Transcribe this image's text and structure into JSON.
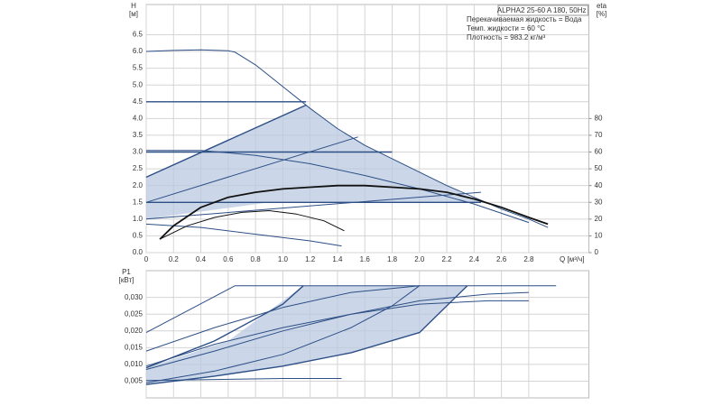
{
  "chart_data": [
    {
      "type": "line",
      "y_label": "H",
      "y_unit": "[м]",
      "y2_label": "eta",
      "y2_unit": "[%]",
      "x_label": "Q [м³/ч]",
      "annotation_title": "ALPHA2 25-60 A 180, 50Hz",
      "annotations": [
        "Перекачиваемая жидкость = Вода",
        "Темп. жидкости = 60 °C",
        "Плотность = 983.2 кг/м³"
      ],
      "xlim": [
        0,
        3.24
      ],
      "xticks": [
        0,
        0.2,
        0.4,
        0.6,
        0.8,
        {
          "value": 1,
          "label": "1.0"
        },
        1.2,
        1.4,
        1.6,
        1.8,
        {
          "value": 2,
          "label": "2.0"
        },
        2.2,
        2.4,
        2.6,
        2.8
      ],
      "ylim": [
        0,
        7.4
      ],
      "yticks": [
        {
          "value": 0,
          "label": "0.0"
        },
        0.5,
        {
          "value": 1,
          "label": "1.0"
        },
        1.5,
        {
          "value": 2,
          "label": "2.0"
        },
        2.5,
        {
          "value": 3,
          "label": "3.0"
        },
        3.5,
        {
          "value": 4,
          "label": "4.0"
        },
        4.5,
        {
          "value": 5,
          "label": "5.0"
        },
        5.5,
        {
          "value": 6,
          "label": "6.0"
        },
        6.5
      ],
      "y2lim": [
        0,
        148
      ],
      "y2ticks": [
        0,
        10,
        20,
        30,
        40,
        50,
        60,
        70,
        80
      ],
      "grid": true,
      "series": [
        {
          "color": "#b9c9e0",
          "fill": true,
          "x": [
            0,
            0,
            1.17,
            1.4,
            1.6,
            1.8,
            2.0,
            2.2,
            2.45,
            0.9
          ],
          "values": [
            1.0,
            2.25,
            4.4,
            3.7,
            3.2,
            2.8,
            2.4,
            2.0,
            1.5,
            1.5
          ]
        },
        {
          "color": "#2d4f86",
          "width": 1,
          "x": [
            0,
            0.2,
            0.4,
            0.6,
            0.65,
            0.8,
            1.0,
            1.2,
            1.4,
            1.6,
            1.8,
            2.0,
            2.2,
            2.4,
            2.6,
            2.8,
            2.94
          ],
          "values": [
            6.0,
            6.03,
            6.05,
            6.02,
            5.98,
            5.6,
            4.95,
            4.3,
            3.7,
            3.2,
            2.8,
            2.4,
            2.0,
            1.65,
            1.3,
            1.0,
            0.75
          ]
        },
        {
          "color": "#2d4f86",
          "width": 1.4,
          "x": [
            0,
            1.17
          ],
          "values": [
            4.5,
            4.5
          ]
        },
        {
          "color": "#2d4f86",
          "width": 1.4,
          "x": [
            0,
            1.8
          ],
          "values": [
            3.0,
            3.0
          ]
        },
        {
          "color": "#2d4f86",
          "width": 1.4,
          "x": [
            0,
            2.45
          ],
          "values": [
            1.5,
            1.5
          ]
        },
        {
          "color": "#2d4f86",
          "width": 1.4,
          "x": [
            0,
            1.17
          ],
          "values": [
            2.25,
            4.4
          ]
        },
        {
          "color": "#2d4f86",
          "width": 1,
          "x": [
            0,
            1.55
          ],
          "values": [
            1.5,
            3.45
          ]
        },
        {
          "color": "#2d4f86",
          "width": 1,
          "x": [
            0,
            2.45
          ],
          "values": [
            1.0,
            1.8
          ]
        },
        {
          "color": "#2d4f86",
          "width": 1,
          "x": [
            0,
            0.4,
            0.8,
            1.2,
            1.6,
            2.0,
            2.4,
            2.8
          ],
          "values": [
            3.05,
            3.05,
            2.9,
            2.65,
            2.3,
            1.9,
            1.45,
            0.9
          ]
        },
        {
          "color": "#2d4f86",
          "width": 1,
          "x": [
            0,
            0.4,
            0.8,
            1.2,
            1.43
          ],
          "values": [
            0.85,
            0.75,
            0.55,
            0.35,
            0.2
          ]
        },
        {
          "color": "#111111",
          "width": 1.8,
          "axis": "y2",
          "x": [
            0.1,
            0.2,
            0.4,
            0.6,
            0.8,
            1.0,
            1.2,
            1.4,
            1.6,
            1.8,
            2.0,
            2.2,
            2.4,
            2.6,
            2.8,
            2.94
          ],
          "values": [
            8,
            16,
            27,
            33,
            36,
            38,
            39,
            40,
            40,
            39,
            38,
            36,
            32,
            27,
            21,
            17
          ]
        },
        {
          "color": "#111111",
          "width": 1,
          "axis": "y2",
          "x": [
            0.1,
            0.3,
            0.5,
            0.7,
            0.9,
            1.1,
            1.3,
            1.45
          ],
          "values": [
            8,
            16,
            21,
            24,
            25,
            23,
            19,
            13
          ]
        }
      ]
    },
    {
      "type": "line",
      "y_label": "P1",
      "y_unit": "[кВт]",
      "xlim": [
        0,
        3.24
      ],
      "xticks": [
        0,
        0.2,
        0.4,
        0.6,
        0.8,
        1,
        1.2,
        1.4,
        1.6,
        1.8,
        2,
        2.2,
        2.4,
        2.6,
        2.8
      ],
      "show_xtick_labels": false,
      "ylim": [
        0,
        0.038
      ],
      "yticks": [
        {
          "value": 0.005,
          "label": "0,005"
        },
        {
          "value": 0.01,
          "label": "0,010"
        },
        {
          "value": 0.015,
          "label": "0,015"
        },
        {
          "value": 0.02,
          "label": "0,020"
        },
        {
          "value": 0.025,
          "label": "0,025"
        },
        {
          "value": 0.03,
          "label": "0,030"
        }
      ],
      "grid": true,
      "series": [
        {
          "color": "#b9c9e0",
          "fill": true,
          "x": [
            0,
            0,
            0.6,
            1.15,
            2.35,
            2.0,
            1.5,
            1.0,
            0.5
          ],
          "values": [
            0.004,
            0.009,
            0.017,
            0.0335,
            0.0335,
            0.0195,
            0.0135,
            0.0095,
            0.0065
          ]
        },
        {
          "color": "#2d4f86",
          "width": 1,
          "x": [
            0,
            0.65,
            3.0
          ],
          "values": [
            0.0195,
            0.0335,
            0.0335
          ]
        },
        {
          "color": "#2d4f86",
          "width": 1,
          "x": [
            0,
            0.5,
            1.0,
            1.5,
            2.0
          ],
          "values": [
            0.014,
            0.021,
            0.027,
            0.0315,
            0.0335
          ]
        },
        {
          "color": "#2d4f86",
          "width": 1.4,
          "x": [
            0,
            0.5,
            1.0,
            1.15
          ],
          "values": [
            0.009,
            0.017,
            0.028,
            0.0335
          ]
        },
        {
          "color": "#2d4f86",
          "width": 1,
          "x": [
            0,
            0.5,
            1.0,
            1.5,
            2.0,
            2.5,
            2.8
          ],
          "values": [
            0.0085,
            0.014,
            0.02,
            0.025,
            0.029,
            0.031,
            0.0315
          ]
        },
        {
          "color": "#2d4f86",
          "width": 1,
          "x": [
            0,
            0.5,
            1.0,
            1.5,
            1.8,
            2.0
          ],
          "values": [
            0.0045,
            0.008,
            0.013,
            0.021,
            0.0275,
            0.0335
          ]
        },
        {
          "color": "#2d4f86",
          "width": 1.4,
          "x": [
            0,
            0.5,
            1.0,
            1.5,
            2.0,
            2.35
          ],
          "values": [
            0.004,
            0.0065,
            0.0095,
            0.0135,
            0.0195,
            0.0335
          ]
        },
        {
          "color": "#2d4f86",
          "width": 1,
          "x": [
            0,
            0.5,
            1.0,
            1.5,
            2.0,
            2.5,
            2.8
          ],
          "values": [
            0.0095,
            0.016,
            0.021,
            0.025,
            0.028,
            0.029,
            0.029
          ]
        },
        {
          "color": "#2d4f86",
          "width": 1,
          "x": [
            0,
            0.5,
            1.0,
            1.43
          ],
          "values": [
            0.0052,
            0.0055,
            0.0058,
            0.0058
          ]
        }
      ]
    }
  ]
}
